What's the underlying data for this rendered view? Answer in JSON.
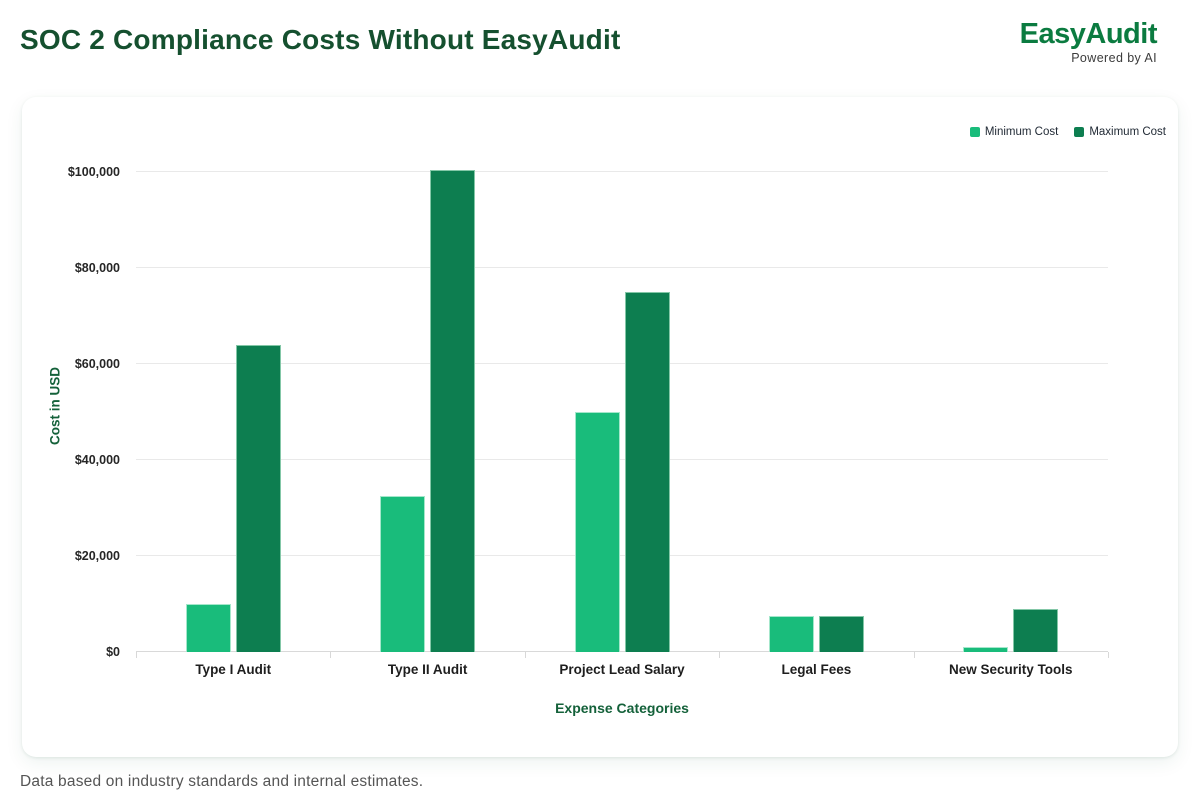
{
  "page": {
    "title": "SOC 2 Compliance Costs Without EasyAudit",
    "footer_note": "Data based on industry standards and internal estimates."
  },
  "logo": {
    "name": "EasyAudit",
    "tagline": "Powered by AI"
  },
  "chart_data": {
    "type": "bar",
    "title": "SOC 2 Compliance Costs Without EasyAudit",
    "categories": [
      "Type I Audit",
      "Type II Audit",
      "Project Lead Salary",
      "Legal Fees",
      "New Security Tools"
    ],
    "series": [
      {
        "name": "Minimum Cost",
        "color": "#19BC7B",
        "border_color": "#a4e7cb",
        "values": [
          10000,
          32500,
          50000,
          7500,
          1000
        ]
      },
      {
        "name": "Maximum Cost",
        "color": "#0D7E50",
        "border_color": "#83c7a7",
        "values": [
          64000,
          100500,
          75000,
          7500,
          9000
        ]
      }
    ],
    "xlabel": "Expense Categories",
    "ylabel": "Cost in USD",
    "ylim": [
      0,
      100000
    ],
    "ytick_step": 20000,
    "ytick_labels": [
      "$0",
      "$20,000",
      "$40,000",
      "$60,000",
      "$80,000",
      "$100,000"
    ],
    "legend_position": "top-right",
    "grid": true
  },
  "colors": {
    "title_green": "#15502F",
    "logo_green": "#0B7B40",
    "axis_title_green": "#14613A",
    "min_series_green": "#19BC7B",
    "max_series_green": "#0D7E50",
    "grid_line": "#e9e9e9",
    "baseline": "#d9d9d9",
    "tick_text": "#262626",
    "footer_text": "#555555"
  }
}
